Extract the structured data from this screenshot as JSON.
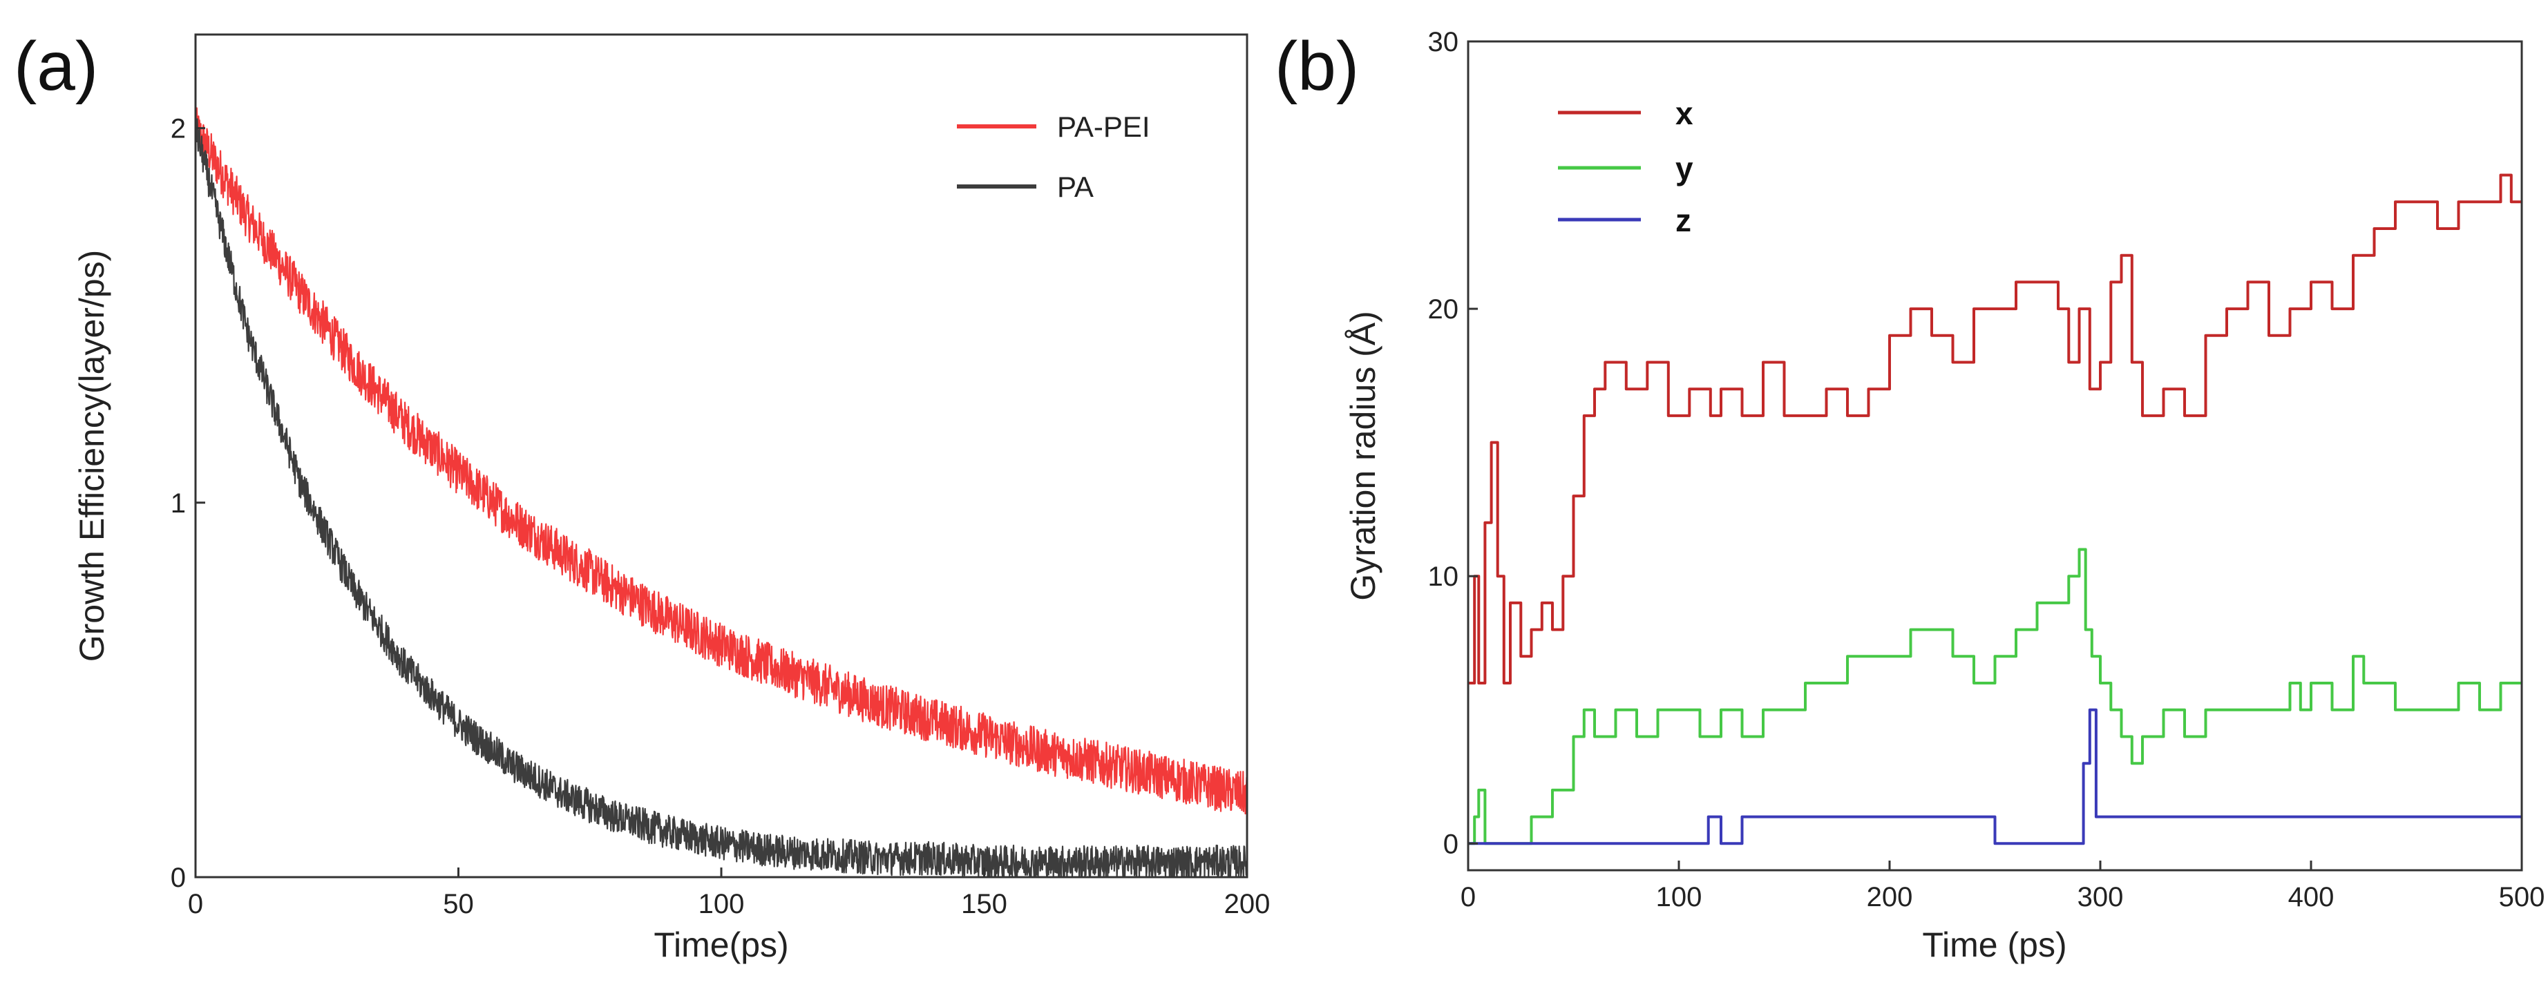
{
  "chart_data": [
    {
      "panel_label": "(a)",
      "type": "line",
      "xlabel": "Time(ps)",
      "ylabel": "Growth Efficiency(layer/ps)",
      "xlim": [
        0,
        200
      ],
      "ylim": [
        0,
        2.25
      ],
      "xticks": [
        0,
        50,
        100,
        150,
        200
      ],
      "xtick_labels": [
        "0",
        "50",
        "100",
        "150",
        "200"
      ],
      "yticks": [
        0,
        1,
        2
      ],
      "ytick_labels": [
        "0",
        "1",
        "2"
      ],
      "legend_position": "top-right",
      "series": [
        {
          "name": "PA-PEI",
          "color": "#f23a3a",
          "x": [
            0,
            10,
            20,
            30,
            40,
            50,
            60,
            70,
            80,
            90,
            100,
            110,
            120,
            130,
            140,
            150,
            160,
            170,
            180,
            190,
            200
          ],
          "y": [
            2.0,
            1.76,
            1.56,
            1.37,
            1.21,
            1.08,
            0.96,
            0.86,
            0.77,
            0.69,
            0.62,
            0.56,
            0.51,
            0.46,
            0.42,
            0.38,
            0.34,
            0.31,
            0.28,
            0.25,
            0.22
          ],
          "noise": 0.06
        },
        {
          "name": "PA",
          "color": "#3d3d3d",
          "x": [
            0,
            10,
            20,
            30,
            40,
            50,
            60,
            70,
            80,
            90,
            100,
            110,
            120,
            130,
            140,
            150,
            160,
            170,
            180,
            190,
            200
          ],
          "y": [
            2.0,
            1.45,
            1.05,
            0.77,
            0.56,
            0.41,
            0.3,
            0.22,
            0.16,
            0.12,
            0.09,
            0.07,
            0.06,
            0.05,
            0.05,
            0.04,
            0.04,
            0.04,
            0.04,
            0.04,
            0.04
          ],
          "noise": 0.045
        }
      ]
    },
    {
      "panel_label": "(b)",
      "type": "line",
      "xlabel": "Time (ps)",
      "ylabel": "Gyration radius (Å)",
      "xlim": [
        0,
        500
      ],
      "ylim": [
        -1,
        30
      ],
      "xticks": [
        0,
        100,
        200,
        300,
        400,
        500
      ],
      "xtick_labels": [
        "0",
        "100",
        "200",
        "300",
        "400",
        "500"
      ],
      "yticks": [
        0,
        10,
        20,
        30
      ],
      "ytick_labels": [
        "0",
        "10",
        "20",
        "30"
      ],
      "legend_position": "top-left",
      "series": [
        {
          "name": "x",
          "color": "#c22828",
          "x": [
            0,
            3,
            5,
            8,
            11,
            14,
            17,
            20,
            25,
            30,
            35,
            40,
            45,
            50,
            55,
            60,
            65,
            75,
            85,
            95,
            105,
            115,
            120,
            130,
            140,
            150,
            160,
            170,
            180,
            190,
            200,
            210,
            220,
            230,
            240,
            250,
            260,
            270,
            280,
            285,
            290,
            295,
            300,
            305,
            310,
            315,
            320,
            330,
            340,
            350,
            360,
            370,
            380,
            390,
            400,
            410,
            420,
            430,
            440,
            450,
            460,
            470,
            480,
            490,
            495,
            500
          ],
          "y": [
            6,
            10,
            6,
            12,
            15,
            10,
            6,
            9,
            7,
            8,
            9,
            8,
            10,
            13,
            16,
            17,
            18,
            17,
            18,
            16,
            17,
            16,
            17,
            16,
            18,
            16,
            16,
            17,
            16,
            17,
            19,
            20,
            19,
            18,
            20,
            20,
            21,
            21,
            20,
            18,
            20,
            17,
            18,
            21,
            22,
            18,
            16,
            17,
            16,
            19,
            20,
            21,
            19,
            20,
            21,
            20,
            22,
            23,
            24,
            24,
            23,
            24,
            24,
            25,
            24,
            24
          ]
        },
        {
          "name": "y",
          "color": "#46c846",
          "x": [
            0,
            3,
            5,
            8,
            11,
            14,
            20,
            25,
            30,
            40,
            50,
            55,
            60,
            70,
            80,
            90,
            100,
            110,
            120,
            130,
            140,
            150,
            160,
            170,
            180,
            190,
            200,
            210,
            220,
            230,
            240,
            250,
            260,
            270,
            280,
            285,
            290,
            293,
            296,
            300,
            305,
            310,
            315,
            320,
            330,
            340,
            350,
            360,
            370,
            380,
            390,
            395,
            400,
            410,
            420,
            425,
            430,
            440,
            450,
            460,
            470,
            480,
            490,
            500
          ],
          "y": [
            0,
            1,
            2,
            0,
            0,
            0,
            0,
            0,
            1,
            2,
            4,
            5,
            4,
            5,
            4,
            5,
            5,
            4,
            5,
            4,
            5,
            5,
            6,
            6,
            7,
            7,
            7,
            8,
            8,
            7,
            6,
            7,
            8,
            9,
            9,
            10,
            11,
            8,
            7,
            6,
            5,
            4,
            3,
            4,
            5,
            4,
            5,
            5,
            5,
            5,
            6,
            5,
            6,
            5,
            7,
            6,
            6,
            5,
            5,
            5,
            6,
            5,
            6,
            6
          ]
        },
        {
          "name": "z",
          "color": "#3a3ab8",
          "x": [
            0,
            50,
            100,
            110,
            114,
            120,
            125,
            130,
            150,
            200,
            248,
            250,
            290,
            292,
            295,
            298,
            300,
            350,
            400,
            450,
            500
          ],
          "y": [
            0,
            0,
            0,
            0,
            1,
            0,
            0,
            1,
            1,
            1,
            1,
            0,
            0,
            3,
            5,
            1,
            1,
            1,
            1,
            1,
            1
          ]
        }
      ]
    }
  ]
}
